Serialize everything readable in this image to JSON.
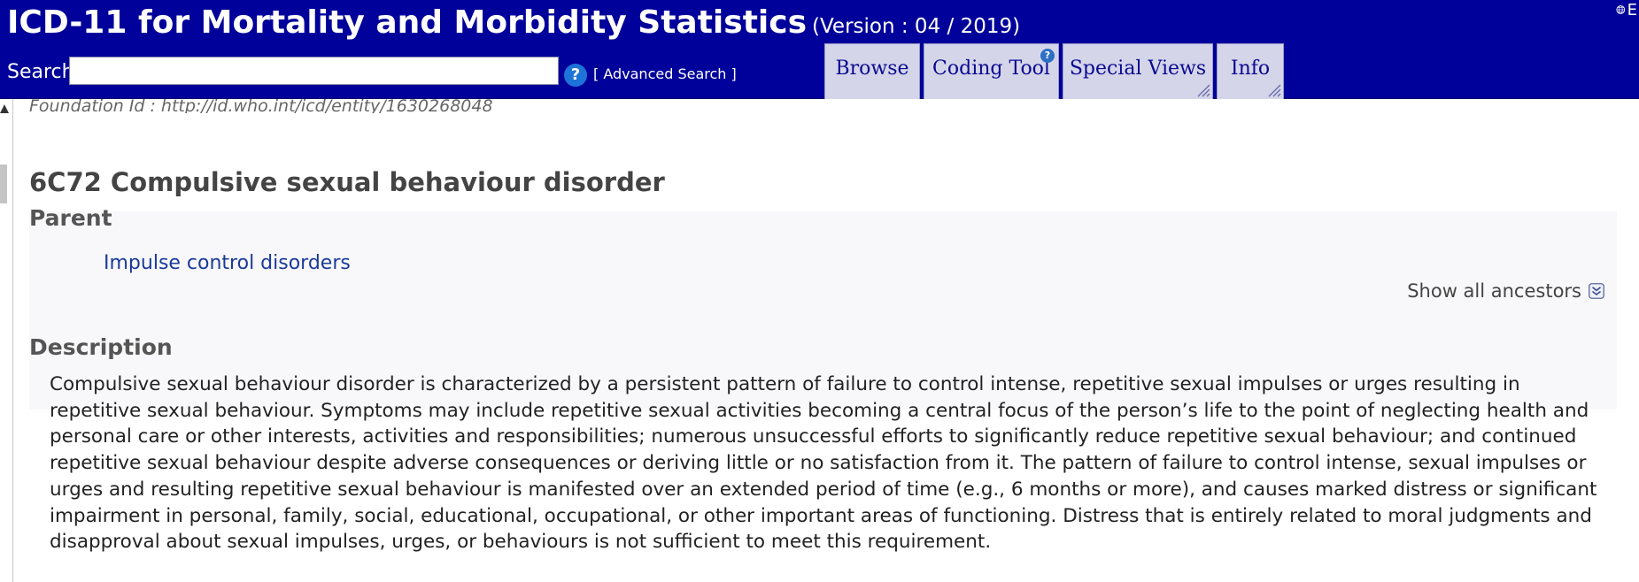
{
  "header": {
    "title": "ICD-11 for Mortality and Morbidity Statistics",
    "version": "(Version : 04 / 2019)",
    "language_code": "E"
  },
  "search": {
    "label": "Search",
    "value": "",
    "help_icon": "?",
    "advanced_label": "[ Advanced Search ]"
  },
  "tabs": [
    {
      "label": "Browse"
    },
    {
      "label": "Coding Tool",
      "badge": "?"
    },
    {
      "label": "Special Views"
    },
    {
      "label": "Info"
    }
  ],
  "entity": {
    "foundation_id": "Foundation Id : http://id.who.int/icd/entity/1630268048",
    "title": "6C72 Compulsive sexual behaviour disorder"
  },
  "parent": {
    "heading": "Parent",
    "link": "Impulse control disorders",
    "show_all": "Show all ancestors"
  },
  "description": {
    "heading": "Description",
    "text": "Compulsive sexual behaviour disorder is characterized by a persistent pattern of failure to control intense, repetitive sexual impulses or urges resulting in repetitive sexual behaviour. Symptoms may include repetitive sexual activities becoming a central focus of the person’s life to the point of neglecting health and personal care or other interests, activities and responsibilities; numerous unsuccessful efforts to significantly reduce repetitive sexual behaviour; and continued repetitive sexual behaviour despite adverse consequences or deriving little or no satisfaction from it. The pattern of failure to control intense, sexual impulses or urges and resulting repetitive sexual behaviour is manifested over an extended period of time (e.g., 6 months or more), and causes marked distress or significant impairment in personal, family, social, educational, occupational, or other important areas of functioning. Distress that is entirely related to moral judgments and disapproval about sexual impulses, urges, or behaviours is not sufficient to meet this requirement."
  },
  "colors": {
    "header_bg": "#00009a",
    "tab_bg": "#d5d5ea",
    "link": "#1a3a9a"
  },
  "icons": [
    "globe-icon",
    "help-icon",
    "chevron-double-down-icon",
    "resize-grip-icon",
    "scroll-up-arrow-icon"
  ]
}
